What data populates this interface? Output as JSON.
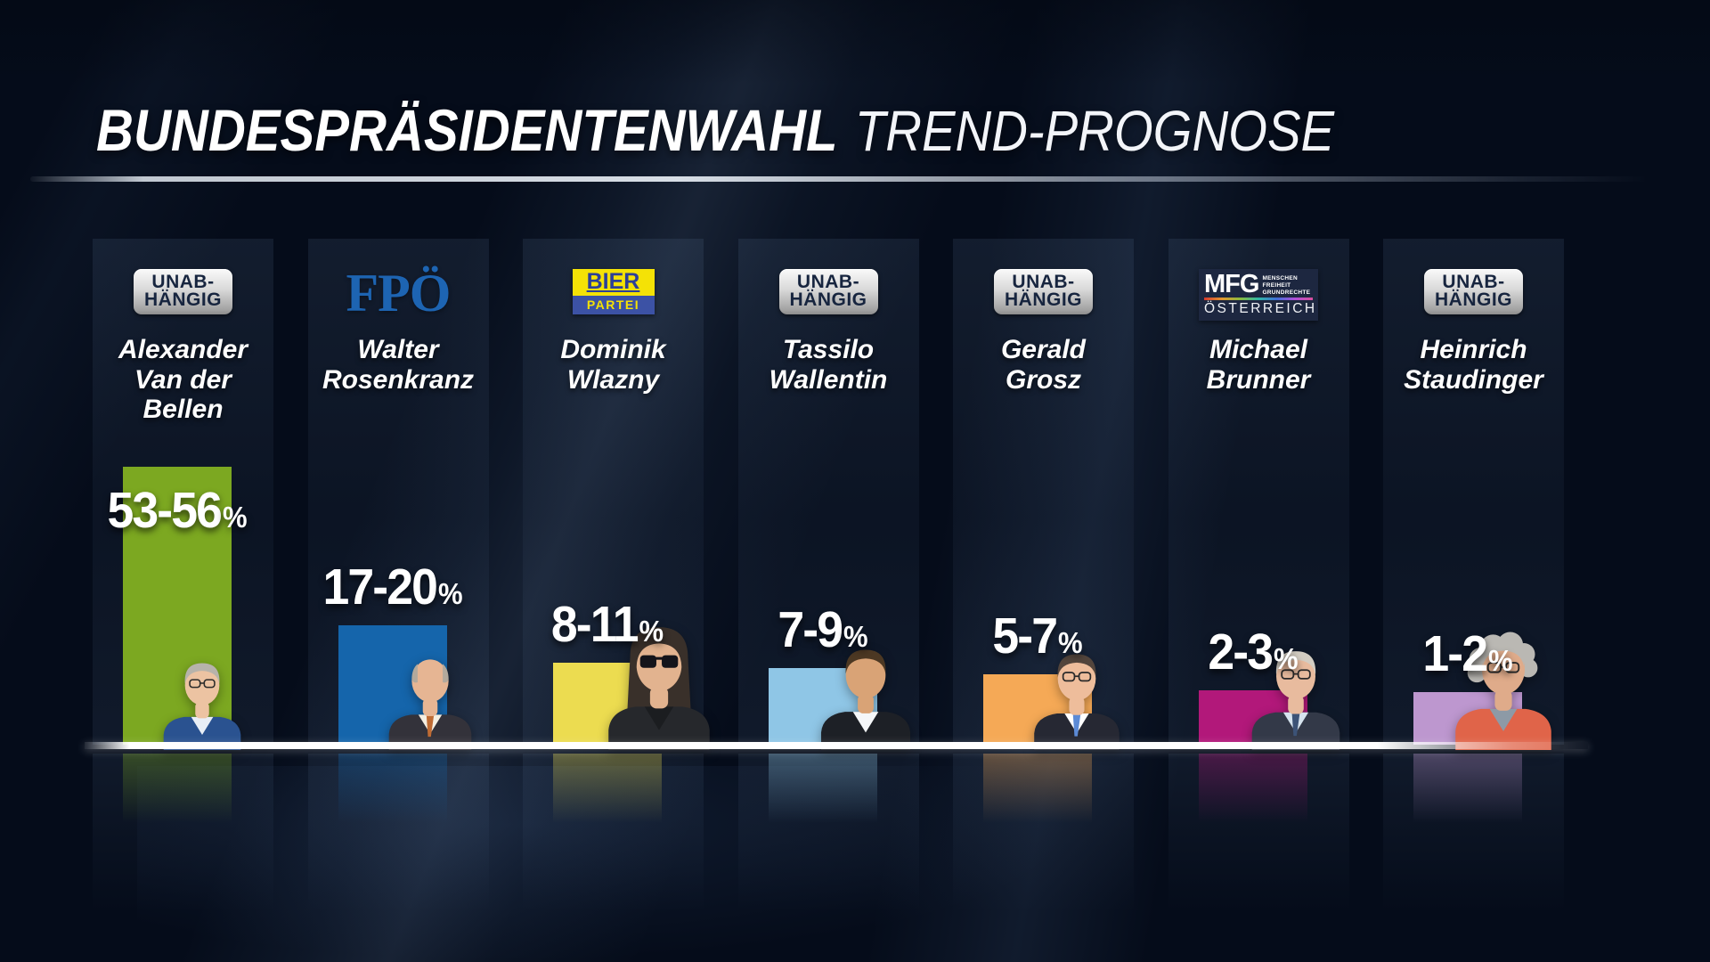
{
  "header": {
    "title": "BUNDESPRÄSIDENTENWAHL",
    "subtitle": "TREND-PROGNOSE"
  },
  "chart_data": {
    "type": "bar",
    "title": "BUNDESPRÄSIDENTENWAHL",
    "subtitle": "TREND-PROGNOSE",
    "unit": "%",
    "categories": [
      "Alexander Van der Bellen",
      "Walter Rosenkranz",
      "Dominik Wlazny",
      "Tassilo Wallentin",
      "Gerald Grosz",
      "Michael Brunner",
      "Heinrich Staudinger"
    ],
    "parties": [
      "UNABHÄNGIG",
      "FPÖ",
      "BIERPARTEI",
      "UNABHÄNGIG",
      "UNABHÄNGIG",
      "MFG ÖSTERREICH",
      "UNABHÄNGIG"
    ],
    "value_labels": [
      "53-56%",
      "17-20%",
      "8-11%",
      "7-9%",
      "5-7%",
      "2-3%",
      "1-2%"
    ],
    "ranges_percent": [
      [
        53,
        56
      ],
      [
        17,
        20
      ],
      [
        8,
        11
      ],
      [
        7,
        9
      ],
      [
        5,
        7
      ],
      [
        2,
        3
      ],
      [
        1,
        2
      ]
    ],
    "bar_colors": [
      "#7ca821",
      "#1565ab",
      "#ecdc50",
      "#8fc6e6",
      "#f5a956",
      "#b2187a",
      "#bd97cf"
    ],
    "legend": false,
    "grid": false,
    "baseline_color": "#ffffff"
  },
  "unit": "%",
  "candidates": [
    {
      "name_line1": "Alexander",
      "name_line2": "Van der Bellen",
      "party": {
        "kind": "badge",
        "line1": "UNAB-",
        "line2": "HÄNGIG"
      },
      "range": "53-56",
      "range_min": 53,
      "range_max": 56,
      "bar_color": "#7ca821",
      "photo": {
        "hair": "#b7b3ab",
        "skin": "#ecc3a2",
        "suit": "#2a5290",
        "shirt": "#e8eef6",
        "tie": null,
        "eyewear": "glasses",
        "hair_style": "full"
      }
    },
    {
      "name_line1": "Walter",
      "name_line2": "Rosenkranz",
      "party": {
        "kind": "fpo",
        "text": "FPÖ"
      },
      "range": "17-20",
      "range_min": 17,
      "range_max": 20,
      "bar_color": "#1565ab",
      "photo": {
        "hair": "#b3a99c",
        "skin": "#e6b593",
        "suit": "#33323a",
        "shirt": "#f5efe2",
        "tie": "#bf6b33",
        "eyewear": "none",
        "hair_style": "bald"
      }
    },
    {
      "name_line1": "Dominik",
      "name_line2": "Wlazny",
      "party": {
        "kind": "bier",
        "line1": "BIER",
        "line2": "PARTEI"
      },
      "range": "8-11",
      "range_min": 8,
      "range_max": 11,
      "bar_color": "#ecdc50",
      "photo": {
        "hair": "#39302a",
        "skin": "#e2b38f",
        "suit": "#26282c",
        "shirt": "#1b1d20",
        "tie": null,
        "eyewear": "sunglasses",
        "hair_style": "long"
      }
    },
    {
      "name_line1": "Tassilo",
      "name_line2": "Wallentin",
      "party": {
        "kind": "badge",
        "line1": "UNAB-",
        "line2": "HÄNGIG"
      },
      "range": "7-9",
      "range_min": 7,
      "range_max": 9,
      "bar_color": "#8fc6e6",
      "photo": {
        "hair": "#4c3823",
        "skin": "#d9a376",
        "suit": "#1d2026",
        "shirt": "#f5f7f9",
        "tie": null,
        "eyewear": "none",
        "hair_style": "full"
      }
    },
    {
      "name_line1": "Gerald",
      "name_line2": "Grosz",
      "party": {
        "kind": "badge",
        "line1": "UNAB-",
        "line2": "HÄNGIG"
      },
      "range": "5-7",
      "range_min": 5,
      "range_max": 7,
      "bar_color": "#f5a956",
      "photo": {
        "hair": "#53453c",
        "skin": "#eebd9b",
        "suit": "#262833",
        "shirt": "#ffffff",
        "tie": "#5b8ad6",
        "eyewear": "glasses",
        "hair_style": "full"
      }
    },
    {
      "name_line1": "Michael",
      "name_line2": "Brunner",
      "party": {
        "kind": "mfg",
        "main": "MFG",
        "small1": "MENSCHEN",
        "small2": "FREIHEIT",
        "small3": "GRUNDRECHTE",
        "country": "ÖSTERREICH"
      },
      "range": "2-3",
      "range_min": 2,
      "range_max": 3,
      "bar_color": "#b2187a",
      "photo": {
        "hair": "#d3cdc2",
        "skin": "#e8bb9e",
        "suit": "#333948",
        "shirt": "#d7e4ef",
        "tie": "#3c5377",
        "eyewear": "glasses",
        "hair_style": "full"
      }
    },
    {
      "name_line1": "Heinrich",
      "name_line2": "Staudinger",
      "party": {
        "kind": "badge",
        "line1": "UNAB-",
        "line2": "HÄNGIG"
      },
      "range": "1-2",
      "range_min": 1,
      "range_max": 2,
      "bar_color": "#bd97cf",
      "photo": {
        "hair": "#bab8b3",
        "skin": "#dfab8a",
        "suit": "#e06449",
        "shirt": "#8d9aa6",
        "tie": null,
        "eyewear": "glasses",
        "hair_style": "curly"
      }
    }
  ]
}
